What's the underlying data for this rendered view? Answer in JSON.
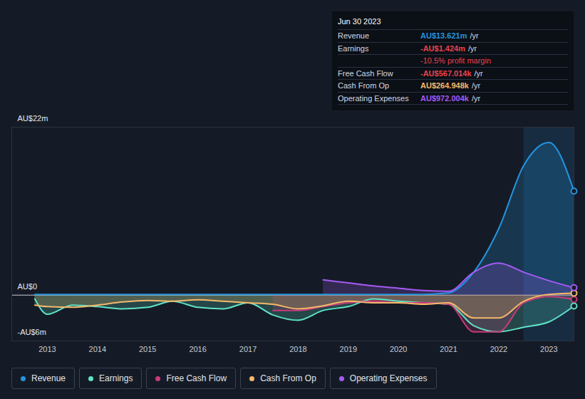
{
  "chart_data": {
    "type": "line",
    "x": [
      2012.75,
      2013,
      2013.5,
      2014,
      2014.5,
      2015,
      2015.5,
      2016,
      2016.5,
      2017,
      2017.5,
      2018,
      2018.5,
      2019,
      2019.5,
      2020,
      2020.5,
      2021,
      2021.5,
      2022,
      2022.5,
      2023,
      2023.5
    ],
    "xlim": [
      2012.29,
      2023.5
    ],
    "xticks": [
      2013,
      2014,
      2015,
      2016,
      2017,
      2018,
      2019,
      2020,
      2021,
      2022,
      2023
    ],
    "ylim": [
      -6,
      22
    ],
    "yticks": [
      {
        "value": -6,
        "label": "-AU$6m"
      },
      {
        "value": 0,
        "label": "AU$0"
      },
      {
        "value": 22,
        "label": "AU$22m"
      }
    ],
    "grid": true,
    "legend": "bottom",
    "series": [
      {
        "name": "Revenue",
        "color": "#2394df",
        "values": [
          0.1,
          0.1,
          0.1,
          0.1,
          0.1,
          0.1,
          0.1,
          0.1,
          0.1,
          0.1,
          0.1,
          0.1,
          0.1,
          0.1,
          0.1,
          0.1,
          0.1,
          0.3,
          3.0,
          8.7,
          17.0,
          20.0,
          13.621
        ]
      },
      {
        "name": "Earnings",
        "color": "#5fe3c8",
        "values": [
          -0.5,
          -2.5,
          -1.3,
          -1.5,
          -1.8,
          -1.6,
          -0.8,
          -1.6,
          -1.8,
          -1.0,
          -2.6,
          -3.3,
          -2.0,
          -1.5,
          -0.5,
          -0.8,
          -1.0,
          -1.2,
          -4.0,
          -4.8,
          -4.2,
          -3.5,
          -1.424
        ]
      },
      {
        "name": "Free Cash Flow",
        "color": "#c73b7a",
        "values": [
          null,
          null,
          null,
          null,
          null,
          null,
          null,
          null,
          null,
          null,
          -2.0,
          -2.0,
          -1.5,
          -1.0,
          -0.8,
          -1.0,
          -1.0,
          -1.2,
          -4.8,
          -4.8,
          -1.0,
          -0.2,
          -0.567
        ]
      },
      {
        "name": "Cash From Op",
        "color": "#f5b96b",
        "values": [
          -1.3,
          -1.5,
          -1.6,
          -1.3,
          -0.9,
          -0.7,
          -0.8,
          -0.6,
          -0.8,
          -1.0,
          -1.2,
          -1.8,
          -1.4,
          -0.8,
          -1.0,
          -1.0,
          -1.2,
          -1.0,
          -3.0,
          -3.0,
          -0.8,
          0.1,
          0.265
        ]
      },
      {
        "name": "Operating Expenses",
        "color": "#a55af4",
        "values": [
          null,
          null,
          null,
          null,
          null,
          null,
          null,
          null,
          null,
          null,
          null,
          null,
          2.0,
          1.6,
          1.2,
          0.9,
          0.6,
          0.5,
          3.0,
          4.2,
          3.0,
          1.9,
          0.972
        ]
      }
    ],
    "tooltip": {
      "title": "Jun 30 2023",
      "range": [
        2022.5,
        2023.5
      ],
      "rows": [
        {
          "label": "Revenue",
          "value": "AU$13.621m",
          "suffix": "/yr",
          "color": "#2394df"
        },
        {
          "label": "Earnings",
          "value": "-AU$1.424m",
          "suffix": "/yr",
          "color": "#e8434f",
          "note": "-10.5% profit margin"
        },
        {
          "label": "Free Cash Flow",
          "value": "-AU$567.014k",
          "suffix": "/yr",
          "color": "#e8434f"
        },
        {
          "label": "Cash From Op",
          "value": "AU$264.948k",
          "suffix": "/yr",
          "color": "#f5b96b"
        },
        {
          "label": "Operating Expenses",
          "value": "AU$972.004k",
          "suffix": "/yr",
          "color": "#a55af4"
        }
      ]
    }
  }
}
